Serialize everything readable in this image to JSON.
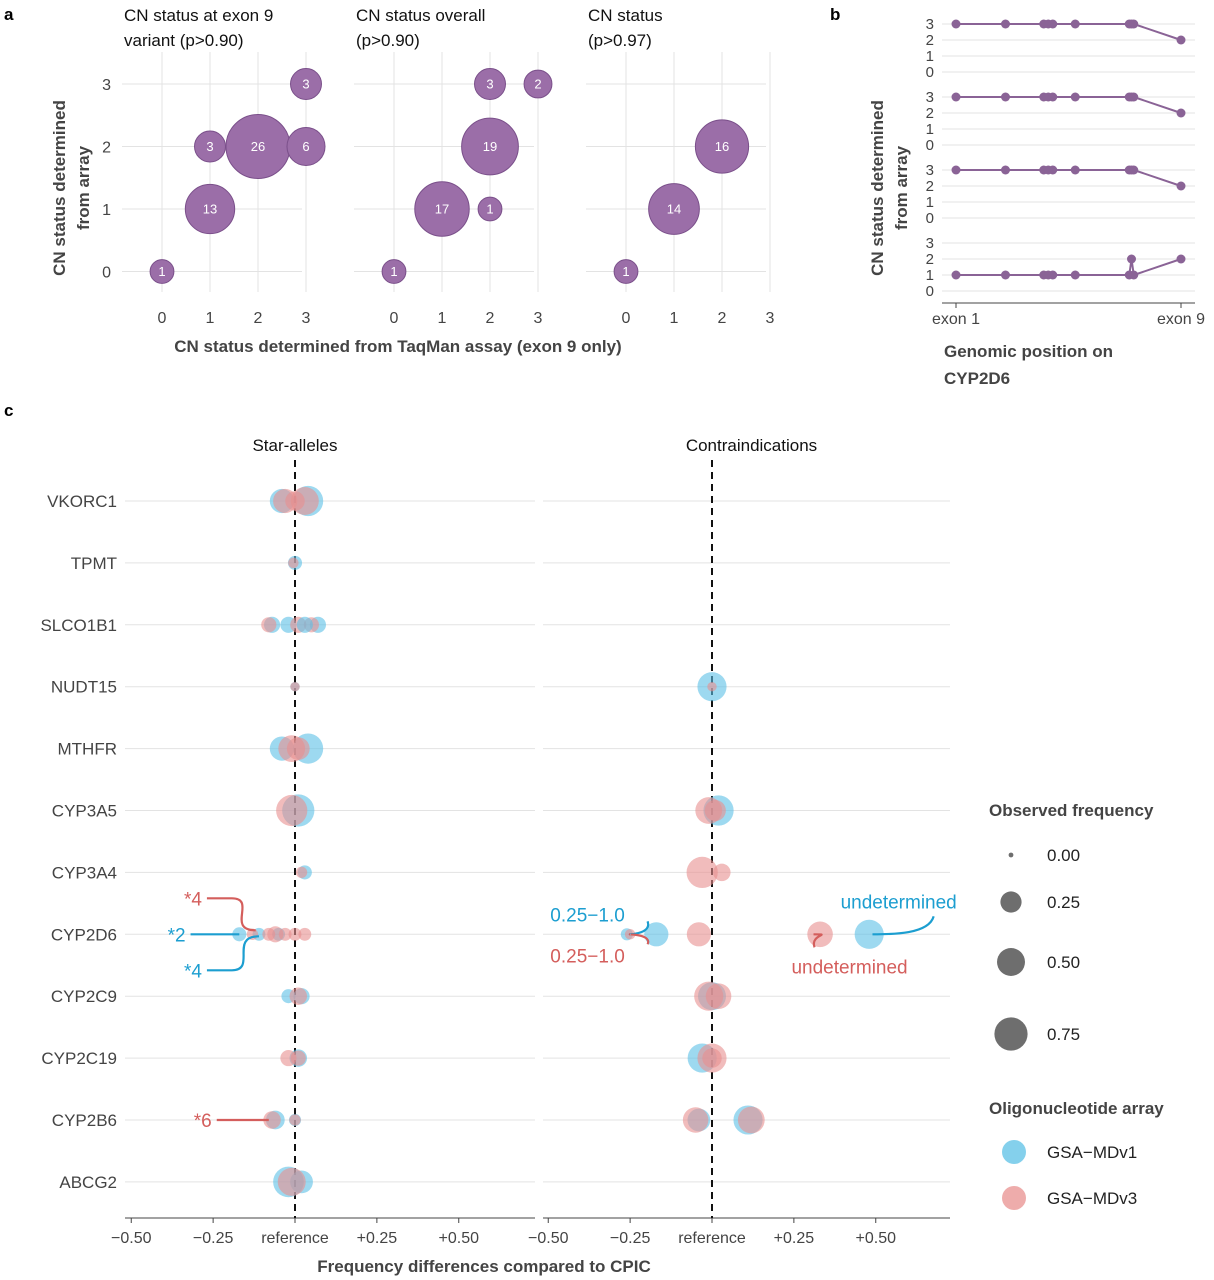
{
  "panel_labels": {
    "a": "a",
    "b": "b",
    "c": "c"
  },
  "colors": {
    "purple": "#9b6ea8",
    "purple_stroke": "#7a4f8a",
    "purple_line": "#8a6396",
    "blue": "#5bc0e6",
    "blue_label": "#1c9ed0",
    "red": "#e8908f",
    "red_label": "#d45e5c",
    "grid": "#e3e3e3",
    "text": "#333333"
  },
  "chart_data": [
    {
      "id": "panel_a",
      "type": "scatter",
      "xlabel": "CN status determined from TaqMan assay (exon 9 only)",
      "ylabel_lines": [
        "CN status determined",
        "from array"
      ],
      "x_ticks": [
        "0",
        "1",
        "2",
        "3"
      ],
      "y_ticks": [
        "0",
        "1",
        "2",
        "3"
      ],
      "xlim": [
        0,
        3
      ],
      "ylim": [
        0,
        3
      ],
      "facets": [
        {
          "title_lines": [
            "CN status at exon 9",
            "variant (p>0.90)"
          ],
          "points": [
            {
              "x": 0,
              "y": 0,
              "n": 1
            },
            {
              "x": 1,
              "y": 1,
              "n": 13
            },
            {
              "x": 1,
              "y": 2,
              "n": 3
            },
            {
              "x": 2,
              "y": 2,
              "n": 26
            },
            {
              "x": 3,
              "y": 2,
              "n": 6
            },
            {
              "x": 3,
              "y": 3,
              "n": 3
            }
          ]
        },
        {
          "title_lines": [
            "CN status overall",
            "(p>0.90)"
          ],
          "points": [
            {
              "x": 0,
              "y": 0,
              "n": 1
            },
            {
              "x": 1,
              "y": 1,
              "n": 17
            },
            {
              "x": 2,
              "y": 1,
              "n": 1
            },
            {
              "x": 2,
              "y": 2,
              "n": 19
            },
            {
              "x": 2,
              "y": 3,
              "n": 3
            },
            {
              "x": 3,
              "y": 3,
              "n": 2
            }
          ]
        },
        {
          "title_lines": [
            "CN status",
            "(p>0.97)"
          ],
          "points": [
            {
              "x": 0,
              "y": 0,
              "n": 1
            },
            {
              "x": 1,
              "y": 1,
              "n": 14
            },
            {
              "x": 2,
              "y": 2,
              "n": 16
            }
          ]
        }
      ]
    },
    {
      "id": "panel_b",
      "type": "line",
      "xlabel_lines": [
        "Genomic position on",
        "CYP2D6"
      ],
      "ylabel_lines": [
        "CN status determined",
        "from array"
      ],
      "x_ticks": [
        "exon 1",
        "exon 9"
      ],
      "y_ticks": [
        "0",
        "1",
        "2",
        "3"
      ],
      "ylim": [
        0,
        3
      ],
      "positions": [
        0,
        0.22,
        0.39,
        0.41,
        0.43,
        0.53,
        0.77,
        0.78,
        0.79,
        1.0
      ],
      "samples": [
        {
          "values": [
            3,
            3,
            3,
            3,
            3,
            3,
            3,
            3,
            3,
            2
          ]
        },
        {
          "values": [
            3,
            3,
            3,
            3,
            3,
            3,
            3,
            3,
            3,
            2
          ]
        },
        {
          "values": [
            3,
            3,
            3,
            3,
            3,
            3,
            3,
            3,
            3,
            2
          ]
        },
        {
          "values": [
            1,
            1,
            1,
            1,
            1,
            1,
            1,
            2,
            1,
            2
          ]
        }
      ]
    },
    {
      "id": "panel_c",
      "type": "scatter",
      "xlabel": "Frequency differences compared to CPIC",
      "x_tick_values": [
        -0.5,
        -0.25,
        0,
        0.25,
        0.5
      ],
      "x_tick_labels": [
        "−0.50",
        "−0.25",
        "reference",
        "+0.25",
        "+0.50"
      ],
      "xlim": [
        -0.5,
        0.72
      ],
      "genes": [
        "VKORC1",
        "TPMT",
        "SLCO1B1",
        "NUDT15",
        "MTHFR",
        "CYP3A5",
        "CYP3A4",
        "CYP2D6",
        "CYP2C9",
        "CYP2C19",
        "CYP2B6",
        "ABCG2"
      ],
      "facets": [
        {
          "title": "Star-alleles",
          "points": [
            {
              "gene": "VKORC1",
              "array": "GSA-MDv1",
              "diff": -0.04,
              "freq": 0.35
            },
            {
              "gene": "VKORC1",
              "array": "GSA-MDv1",
              "diff": 0.04,
              "freq": 0.6
            },
            {
              "gene": "VKORC1",
              "array": "GSA-MDv3",
              "diff": -0.03,
              "freq": 0.35
            },
            {
              "gene": "VKORC1",
              "array": "GSA-MDv3",
              "diff": 0.03,
              "freq": 0.5
            },
            {
              "gene": "VKORC1",
              "array": "GSA-MDv3",
              "diff": 0.0,
              "freq": 0.2
            },
            {
              "gene": "TPMT",
              "array": "GSA-MDv1",
              "diff": 0.0,
              "freq": 0.08
            },
            {
              "gene": "TPMT",
              "array": "GSA-MDv3",
              "diff": -0.005,
              "freq": 0.03
            },
            {
              "gene": "SLCO1B1",
              "array": "GSA-MDv1",
              "diff": -0.07,
              "freq": 0.12
            },
            {
              "gene": "SLCO1B1",
              "array": "GSA-MDv1",
              "diff": 0.07,
              "freq": 0.12
            },
            {
              "gene": "SLCO1B1",
              "array": "GSA-MDv3",
              "diff": -0.08,
              "freq": 0.1
            },
            {
              "gene": "SLCO1B1",
              "array": "GSA-MDv3",
              "diff": 0.05,
              "freq": 0.1
            },
            {
              "gene": "SLCO1B1",
              "array": "GSA-MDv1",
              "diff": -0.02,
              "freq": 0.12
            },
            {
              "gene": "SLCO1B1",
              "array": "GSA-MDv3",
              "diff": 0.01,
              "freq": 0.12
            },
            {
              "gene": "SLCO1B1",
              "array": "GSA-MDv1",
              "diff": 0.03,
              "freq": 0.12
            },
            {
              "gene": "NUDT15",
              "array": "GSA-MDv1",
              "diff": 0.0,
              "freq": 0.02
            },
            {
              "gene": "NUDT15",
              "array": "GSA-MDv3",
              "diff": 0.0,
              "freq": 0.02
            },
            {
              "gene": "MTHFR",
              "array": "GSA-MDv1",
              "diff": -0.04,
              "freq": 0.35
            },
            {
              "gene": "MTHFR",
              "array": "GSA-MDv1",
              "diff": 0.04,
              "freq": 0.6
            },
            {
              "gene": "MTHFR",
              "array": "GSA-MDv3",
              "diff": -0.01,
              "freq": 0.45
            },
            {
              "gene": "MTHFR",
              "array": "GSA-MDv3",
              "diff": 0.01,
              "freq": 0.3
            },
            {
              "gene": "CYP3A5",
              "array": "GSA-MDv1",
              "diff": 0.01,
              "freq": 0.7
            },
            {
              "gene": "CYP3A5",
              "array": "GSA-MDv3",
              "diff": -0.01,
              "freq": 0.65
            },
            {
              "gene": "CYP3A4",
              "array": "GSA-MDv1",
              "diff": 0.03,
              "freq": 0.08
            },
            {
              "gene": "CYP3A4",
              "array": "GSA-MDv3",
              "diff": 0.02,
              "freq": 0.04
            },
            {
              "gene": "CYP2D6",
              "array": "GSA-MDv1",
              "diff": -0.17,
              "freq": 0.08
            },
            {
              "gene": "CYP2D6",
              "array": "GSA-MDv1",
              "diff": -0.11,
              "freq": 0.06
            },
            {
              "gene": "CYP2D6",
              "array": "GSA-MDv1",
              "diff": -0.05,
              "freq": 0.06
            },
            {
              "gene": "CYP2D6",
              "array": "GSA-MDv3",
              "diff": -0.13,
              "freq": 0.04
            },
            {
              "gene": "CYP2D6",
              "array": "GSA-MDv3",
              "diff": -0.08,
              "freq": 0.06
            },
            {
              "gene": "CYP2D6",
              "array": "GSA-MDv3",
              "diff": -0.06,
              "freq": 0.12
            },
            {
              "gene": "CYP2D6",
              "array": "GSA-MDv3",
              "diff": -0.03,
              "freq": 0.06
            },
            {
              "gene": "CYP2D6",
              "array": "GSA-MDv3",
              "diff": 0.0,
              "freq": 0.06
            },
            {
              "gene": "CYP2D6",
              "array": "GSA-MDv3",
              "diff": 0.03,
              "freq": 0.06
            },
            {
              "gene": "CYP2C9",
              "array": "GSA-MDv1",
              "diff": -0.02,
              "freq": 0.08
            },
            {
              "gene": "CYP2C9",
              "array": "GSA-MDv1",
              "diff": 0.02,
              "freq": 0.12
            },
            {
              "gene": "CYP2C9",
              "array": "GSA-MDv3",
              "diff": 0.01,
              "freq": 0.15
            },
            {
              "gene": "CYP2C19",
              "array": "GSA-MDv1",
              "diff": 0.01,
              "freq": 0.15
            },
            {
              "gene": "CYP2C19",
              "array": "GSA-MDv3",
              "diff": -0.02,
              "freq": 0.12
            },
            {
              "gene": "CYP2C19",
              "array": "GSA-MDv3",
              "diff": 0.01,
              "freq": 0.1
            },
            {
              "gene": "CYP2B6",
              "array": "GSA-MDv1",
              "diff": -0.06,
              "freq": 0.18
            },
            {
              "gene": "CYP2B6",
              "array": "GSA-MDv3",
              "diff": -0.07,
              "freq": 0.15
            },
            {
              "gene": "CYP2B6",
              "array": "GSA-MDv1",
              "diff": 0.0,
              "freq": 0.05
            },
            {
              "gene": "CYP2B6",
              "array": "GSA-MDv3",
              "diff": 0.0,
              "freq": 0.04
            },
            {
              "gene": "ABCG2",
              "array": "GSA-MDv1",
              "diff": -0.02,
              "freq": 0.62
            },
            {
              "gene": "ABCG2",
              "array": "GSA-MDv1",
              "diff": 0.02,
              "freq": 0.3
            },
            {
              "gene": "ABCG2",
              "array": "GSA-MDv3",
              "diff": -0.01,
              "freq": 0.5
            }
          ],
          "annotations": [
            {
              "text": "*4",
              "array": "GSA-MDv3",
              "gene": "CYP2D6",
              "label_diff": -0.33,
              "label_dy": -36,
              "target_diff": -0.12,
              "target_dy": -4
            },
            {
              "text": "*2",
              "array": "GSA-MDv1",
              "gene": "CYP2D6",
              "label_diff": -0.38,
              "label_dy": 0,
              "target_diff": -0.17,
              "target_dy": 0
            },
            {
              "text": "*4",
              "array": "GSA-MDv1",
              "gene": "CYP2D6",
              "label_diff": -0.33,
              "label_dy": 36,
              "target_diff": -0.11,
              "target_dy": 2
            },
            {
              "text": "*6",
              "array": "GSA-MDv3",
              "gene": "CYP2B6",
              "label_diff": -0.3,
              "label_dy": 0,
              "target_diff": -0.08,
              "target_dy": 0
            }
          ]
        },
        {
          "title": "Contraindications",
          "points": [
            {
              "gene": "NUDT15",
              "array": "GSA-MDv1",
              "diff": 0.0,
              "freq": 0.55
            },
            {
              "gene": "NUDT15",
              "array": "GSA-MDv3",
              "diff": 0.0,
              "freq": 0.02
            },
            {
              "gene": "CYP3A5",
              "array": "GSA-MDv1",
              "diff": 0.02,
              "freq": 0.6
            },
            {
              "gene": "CYP3A5",
              "array": "GSA-MDv3",
              "diff": -0.01,
              "freq": 0.45
            },
            {
              "gene": "CYP3A5",
              "array": "GSA-MDv3",
              "diff": 0.01,
              "freq": 0.25
            },
            {
              "gene": "CYP3A4",
              "array": "GSA-MDv3",
              "diff": -0.03,
              "freq": 0.65
            },
            {
              "gene": "CYP3A4",
              "array": "GSA-MDv3",
              "diff": 0.03,
              "freq": 0.15
            },
            {
              "gene": "CYP2D6",
              "array": "GSA-MDv1",
              "diff": -0.26,
              "freq": 0.05
            },
            {
              "gene": "CYP2D6",
              "array": "GSA-MDv1",
              "diff": -0.17,
              "freq": 0.35
            },
            {
              "gene": "CYP2D6",
              "array": "GSA-MDv1",
              "diff": 0.48,
              "freq": 0.55
            },
            {
              "gene": "CYP2D6",
              "array": "GSA-MDv3",
              "diff": -0.25,
              "freq": 0.03
            },
            {
              "gene": "CYP2D6",
              "array": "GSA-MDv3",
              "diff": -0.04,
              "freq": 0.35
            },
            {
              "gene": "CYP2D6",
              "array": "GSA-MDv3",
              "diff": 0.33,
              "freq": 0.4
            },
            {
              "gene": "CYP2C9",
              "array": "GSA-MDv1",
              "diff": 0.0,
              "freq": 0.5
            },
            {
              "gene": "CYP2C9",
              "array": "GSA-MDv3",
              "diff": -0.01,
              "freq": 0.55
            },
            {
              "gene": "CYP2C9",
              "array": "GSA-MDv3",
              "diff": 0.02,
              "freq": 0.4
            },
            {
              "gene": "CYP2C19",
              "array": "GSA-MDv1",
              "diff": -0.03,
              "freq": 0.55
            },
            {
              "gene": "CYP2C19",
              "array": "GSA-MDv3",
              "diff": 0.0,
              "freq": 0.55
            },
            {
              "gene": "CYP2C19",
              "array": "GSA-MDv3",
              "diff": 0.0,
              "freq": 0.2
            },
            {
              "gene": "CYP2B6",
              "array": "GSA-MDv1",
              "diff": -0.04,
              "freq": 0.3
            },
            {
              "gene": "CYP2B6",
              "array": "GSA-MDv3",
              "diff": -0.05,
              "freq": 0.4
            },
            {
              "gene": "CYP2B6",
              "array": "GSA-MDv1",
              "diff": 0.11,
              "freq": 0.55
            },
            {
              "gene": "CYP2B6",
              "array": "GSA-MDv3",
              "diff": 0.12,
              "freq": 0.45
            }
          ],
          "annotations": [
            {
              "text": "0.25−1.0",
              "array": "GSA-MDv1",
              "gene": "CYP2D6",
              "label_diff": -0.38,
              "label_dy": -19,
              "target_diff": -0.25,
              "target_dy": 0
            },
            {
              "text": "0.25−1.0",
              "array": "GSA-MDv3",
              "gene": "CYP2D6",
              "label_diff": -0.38,
              "label_dy": 22,
              "target_diff": -0.25,
              "target_dy": 0
            },
            {
              "text": "undetermined",
              "array": "GSA-MDv1",
              "gene": "CYP2D6",
              "label_diff": 0.57,
              "label_dy": -32,
              "target_diff": 0.49,
              "target_dy": 0
            },
            {
              "text": "undetermined",
              "array": "GSA-MDv3",
              "gene": "CYP2D6",
              "label_diff": 0.42,
              "label_dy": 33,
              "target_diff": 0.31,
              "target_dy": 0
            }
          ]
        }
      ]
    }
  ],
  "legend": {
    "size_title": "Observed frequency",
    "size_items": [
      {
        "label": "0.00",
        "value": 0.0
      },
      {
        "label": "0.25",
        "value": 0.25
      },
      {
        "label": "0.50",
        "value": 0.5
      },
      {
        "label": "0.75",
        "value": 0.75
      }
    ],
    "color_title": "Oligonucleotide array",
    "color_items": [
      {
        "label": "GSA−MDv1",
        "array": "GSA-MDv1"
      },
      {
        "label": "GSA−MDv3",
        "array": "GSA-MDv3"
      }
    ]
  }
}
